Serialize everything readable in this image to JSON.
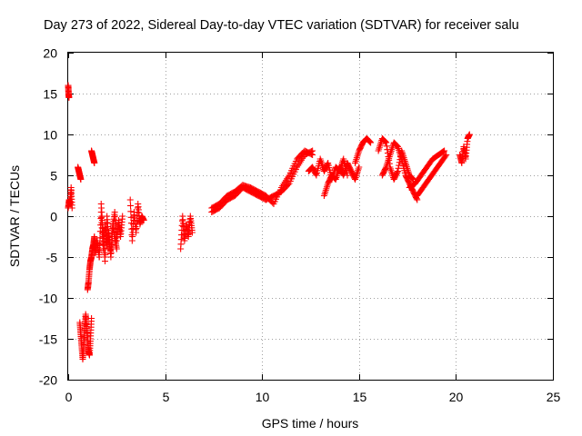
{
  "chart_data": {
    "type": "scatter",
    "title": "Day 273 of 2022, Sidereal Day-to-day VTEC variation (SDTVAR) for receiver salu",
    "xlabel": "GPS time / hours",
    "ylabel": "SDTVAR / TECUs",
    "xlim": [
      0,
      25
    ],
    "ylim": [
      -20,
      20
    ],
    "xticks": [
      0,
      5,
      10,
      15,
      20,
      25
    ],
    "yticks": [
      -20,
      -15,
      -10,
      -5,
      0,
      5,
      10,
      15,
      20
    ],
    "grid": true,
    "marker": "plus",
    "color": "#ff0000",
    "series": [
      {
        "name": "SDTVAR",
        "segments": [
          {
            "x": [
              0.0,
              0.02,
              0.04
            ],
            "y": [
              16.0,
              15.0,
              14.5
            ]
          },
          {
            "x": [
              0.0,
              0.05,
              0.1,
              0.15,
              0.2
            ],
            "y": [
              1.0,
              2.0,
              1.5,
              3.5,
              1.0
            ]
          },
          {
            "x": [
              0.5,
              0.55,
              0.6,
              0.65
            ],
            "y": [
              6.0,
              5.5,
              5.0,
              4.5
            ]
          },
          {
            "x": [
              0.6,
              0.65,
              0.7,
              0.75,
              0.8,
              0.85,
              0.9,
              0.95,
              1.0,
              1.05,
              1.1,
              1.15,
              1.2
            ],
            "y": [
              -13.0,
              -14.5,
              -16.0,
              -17.5,
              -16.0,
              -14.0,
              -12.0,
              -13.5,
              -15.0,
              -16.5,
              -17.0,
              -15.0,
              -12.5
            ]
          },
          {
            "x": [
              1.0,
              1.05,
              1.1,
              1.15,
              1.2,
              1.25,
              1.3,
              1.35,
              1.4,
              1.5,
              1.6
            ],
            "y": [
              -9.0,
              -8.0,
              -6.5,
              -5.5,
              -5.0,
              -4.0,
              -3.5,
              -2.5,
              -4.5,
              -3.0,
              -5.0
            ]
          },
          {
            "x": [
              1.2,
              1.25,
              1.3,
              1.35
            ],
            "y": [
              8.0,
              7.5,
              7.0,
              6.5
            ]
          },
          {
            "x": [
              1.6,
              1.7,
              1.8,
              1.9,
              2.0,
              2.1,
              2.2,
              2.3,
              2.4,
              2.5,
              2.6,
              2.7,
              2.8
            ],
            "y": [
              -5.0,
              0.5,
              -4.0,
              -1.0,
              -3.5,
              -2.0,
              -5.0,
              -1.5,
              0.5,
              -3.0,
              -0.5,
              -2.5,
              0.0
            ]
          },
          {
            "x": [
              1.7,
              1.8,
              1.9,
              2.0,
              2.1,
              2.2,
              2.3,
              2.4,
              2.5
            ],
            "y": [
              1.5,
              -2.0,
              -5.5,
              0.0,
              -3.0,
              -4.5,
              -1.0,
              -2.5,
              -4.0
            ]
          },
          {
            "x": [
              3.2,
              3.3,
              3.4,
              3.5,
              3.6,
              3.7,
              3.8,
              3.9
            ],
            "y": [
              2.0,
              -3.0,
              0.5,
              -2.0,
              1.5,
              -1.0,
              0.0,
              -0.5
            ]
          },
          {
            "x": [
              5.8,
              5.9,
              6.0,
              6.1,
              6.2,
              6.3,
              6.4
            ],
            "y": [
              -4.0,
              0.0,
              -3.0,
              -1.0,
              -2.5,
              0.0,
              -2.0
            ]
          },
          {
            "x": [
              7.4,
              7.8,
              8.2,
              8.6,
              9.0,
              9.4,
              9.8,
              10.2,
              10.6,
              11.0,
              11.4,
              11.8,
              12.2,
              12.6
            ],
            "y": [
              0.5,
              1.0,
              2.0,
              2.5,
              3.5,
              3.0,
              2.5,
              2.0,
              2.5,
              3.0,
              4.0,
              6.0,
              7.5,
              8.0
            ]
          },
          {
            "x": [
              7.4,
              7.8,
              8.2,
              8.6,
              9.0,
              9.4,
              9.8,
              10.2,
              10.6,
              11.0,
              11.4,
              11.8,
              12.2,
              12.6
            ],
            "y": [
              1.0,
              1.5,
              2.5,
              3.0,
              3.8,
              3.5,
              3.0,
              2.5,
              1.5,
              3.5,
              5.0,
              7.0,
              8.0,
              7.5
            ]
          },
          {
            "x": [
              12.4,
              12.6,
              12.8,
              13.0,
              13.2,
              13.4,
              13.6,
              13.8,
              14.0,
              14.2,
              14.4
            ],
            "y": [
              5.5,
              6.0,
              5.0,
              7.0,
              5.5,
              6.5,
              4.5,
              6.0,
              5.5,
              7.0,
              5.0
            ]
          },
          {
            "x": [
              13.2,
              13.4,
              13.6,
              13.8,
              14.0,
              14.2,
              14.4,
              14.6,
              14.8,
              15.0
            ],
            "y": [
              2.5,
              4.0,
              5.0,
              4.5,
              6.0,
              5.0,
              6.5,
              5.5,
              4.5,
              6.0
            ]
          },
          {
            "x": [
              14.8,
              15.0,
              15.2,
              15.4,
              15.6
            ],
            "y": [
              6.5,
              8.0,
              9.0,
              9.5,
              9.0
            ]
          },
          {
            "x": [
              16.0,
              16.2,
              16.4,
              16.6,
              16.8,
              17.0,
              17.2,
              17.4,
              17.6,
              17.8
            ],
            "y": [
              8.0,
              9.5,
              9.0,
              6.0,
              4.5,
              5.5,
              8.0,
              6.5,
              5.0,
              4.5
            ]
          },
          {
            "x": [
              16.2,
              16.4,
              16.6,
              16.8,
              17.0,
              17.2,
              17.4,
              17.6,
              17.8,
              18.0
            ],
            "y": [
              5.0,
              6.0,
              7.5,
              9.0,
              8.5,
              7.0,
              5.0,
              4.0,
              3.0,
              2.0
            ]
          },
          {
            "x": [
              17.6,
              17.9,
              18.2,
              18.5,
              18.8,
              19.1,
              19.4
            ],
            "y": [
              3.5,
              4.0,
              5.0,
              6.0,
              7.0,
              7.5,
              8.0
            ]
          },
          {
            "x": [
              18.0,
              18.3,
              18.6,
              18.9,
              19.2,
              19.5
            ],
            "y": [
              2.5,
              3.5,
              4.5,
              5.5,
              6.5,
              7.5
            ]
          },
          {
            "x": [
              20.2,
              20.3,
              20.4,
              20.5,
              20.6,
              20.7
            ],
            "y": [
              7.5,
              6.5,
              8.5,
              7.0,
              9.5,
              10.0
            ]
          }
        ]
      }
    ]
  }
}
